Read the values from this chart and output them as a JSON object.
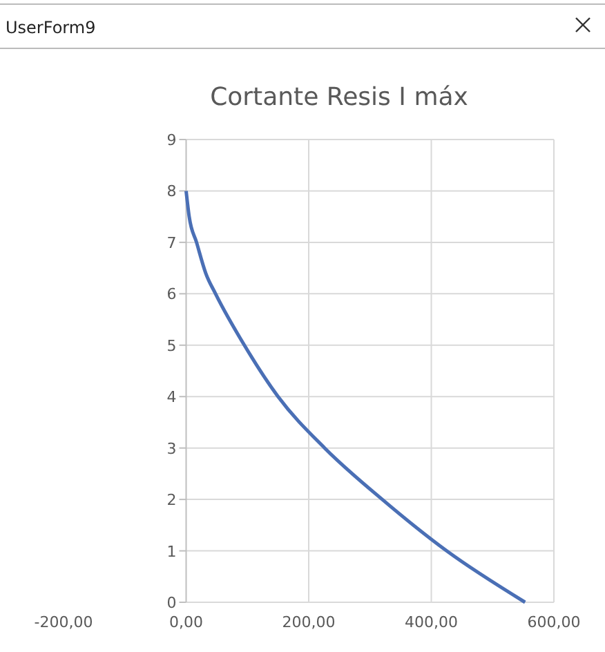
{
  "chart_data": {
    "type": "line",
    "title": "Cortante Resis I máx",
    "annotations": [
      "UserForm9"
    ],
    "x": [
      0,
      5,
      17,
      32,
      48,
      95,
      150,
      226,
      320,
      425,
      553
    ],
    "series": [
      {
        "color": "#4a6fb5",
        "values": [
          8,
          7.5,
          7,
          6.4,
          6,
          5,
          4,
          3,
          2,
          1,
          0
        ]
      }
    ],
    "xlim": [
      -200,
      600
    ],
    "ylim": [
      0,
      9
    ],
    "xticks": [
      {
        "value": -200,
        "label": "-200,00"
      },
      {
        "value": 0,
        "label": "0,00"
      },
      {
        "value": 200,
        "label": "200,00"
      },
      {
        "value": 400,
        "label": "400,00"
      },
      {
        "value": 600,
        "label": "600,00"
      }
    ],
    "yticks": [
      0,
      1,
      2,
      3,
      4,
      5,
      6,
      7,
      8,
      9
    ],
    "grid": true,
    "marker": "none",
    "line_style": "solid"
  }
}
